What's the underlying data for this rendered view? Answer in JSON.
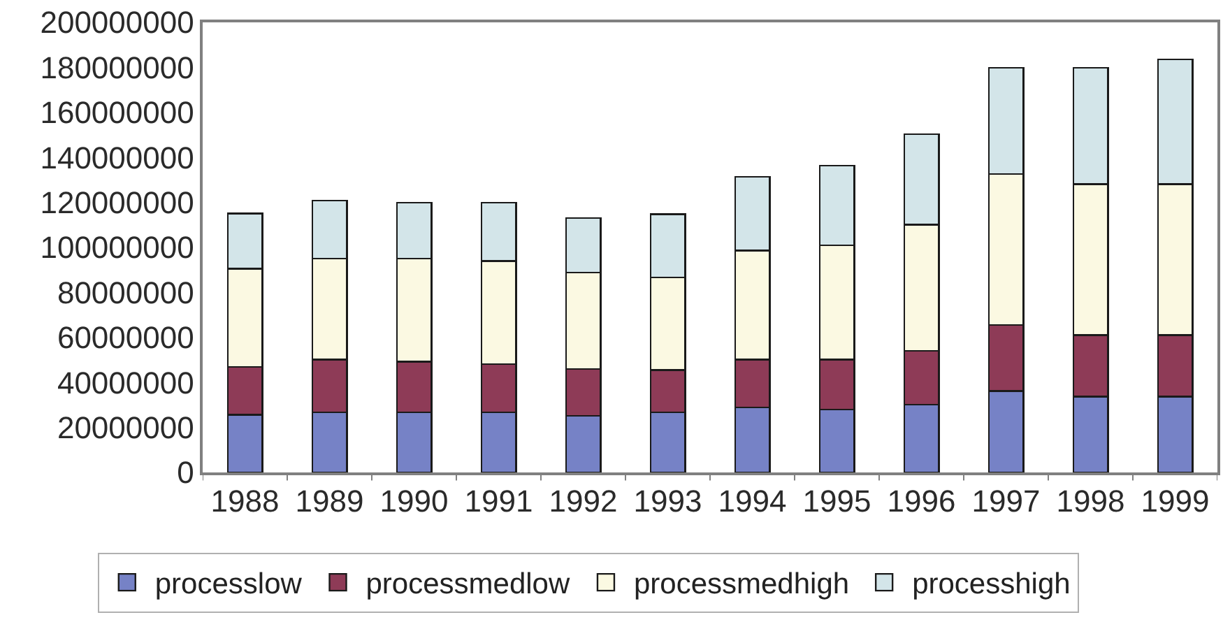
{
  "chart_data": {
    "type": "bar",
    "stacked": true,
    "categories": [
      "1988",
      "1989",
      "1990",
      "1991",
      "1992",
      "1993",
      "1994",
      "1995",
      "1996",
      "1997",
      "1998",
      "1999"
    ],
    "series": [
      {
        "name": "processlow",
        "color": "#7682c6",
        "values": [
          25600000,
          26700000,
          26700000,
          26700000,
          25200000,
          26700000,
          28900000,
          27900000,
          30200000,
          36200000,
          33700000,
          33700000
        ]
      },
      {
        "name": "processmedlow",
        "color": "#8e3b57",
        "values": [
          21300000,
          23500000,
          22500000,
          21400000,
          20700000,
          18800000,
          21300000,
          22300000,
          23900000,
          29300000,
          27300000,
          27300000
        ]
      },
      {
        "name": "processmedhigh",
        "color": "#fbf9e2",
        "values": [
          43600000,
          44800000,
          45800000,
          45900000,
          42900000,
          41100000,
          48400000,
          50800000,
          56000000,
          67100000,
          67100000,
          67100000
        ]
      },
      {
        "name": "processhigh",
        "color": "#d3e5e9",
        "values": [
          24600000,
          25900000,
          24800000,
          25800000,
          24200000,
          28100000,
          32800000,
          35400000,
          40300000,
          47200000,
          51700000,
          55400000
        ]
      }
    ],
    "ylim": [
      0,
      200000000
    ],
    "yticks": [
      0,
      20000000,
      40000000,
      60000000,
      80000000,
      100000000,
      120000000,
      140000000,
      160000000,
      180000000,
      200000000
    ],
    "grid": false,
    "legend": "bottom"
  }
}
